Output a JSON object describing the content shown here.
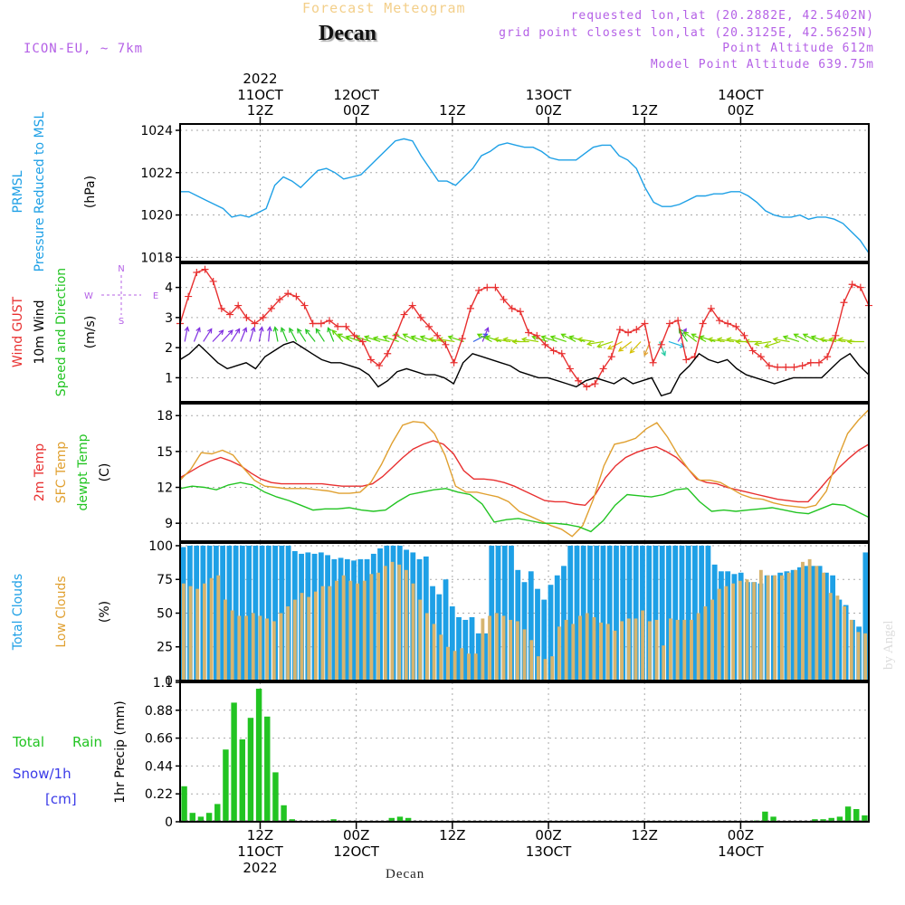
{
  "header": {
    "subtitle": "Forecast Meteogram",
    "title": "Decan",
    "model": "ICON-EU, ~ 7km",
    "requested": "requested lon,lat (20.2882E, 42.5402N)",
    "grid": "grid point closest lon,lat (20.3125E, 42.5625N)",
    "point_alt": "Point Altitude 612m",
    "model_alt": "Model Point Altitude 639.75m"
  },
  "footer": {
    "station": "Decan",
    "credit": "by Angel"
  },
  "time_axis": {
    "top": [
      {
        "line1": "2022",
        "line2": "11OCT",
        "line3": "12Z",
        "hour": 12
      },
      {
        "line1": "",
        "line2": "12OCT",
        "line3": "00Z",
        "hour": 24
      },
      {
        "line1": "",
        "line2": "",
        "line3": "12Z",
        "hour": 36
      },
      {
        "line1": "",
        "line2": "13OCT",
        "line3": "00Z",
        "hour": 48
      },
      {
        "line1": "",
        "line2": "",
        "line3": "12Z",
        "hour": 60
      },
      {
        "line1": "",
        "line2": "14OCT",
        "line3": "00Z",
        "hour": 72
      }
    ],
    "bottom": [
      {
        "line1": "12Z",
        "line2": "11OCT",
        "line3": "2022",
        "hour": 12
      },
      {
        "line1": "00Z",
        "line2": "12OCT",
        "line3": "",
        "hour": 24
      },
      {
        "line1": "12Z",
        "line2": "",
        "line3": "",
        "hour": 36
      },
      {
        "line1": "00Z",
        "line2": "13OCT",
        "line3": "",
        "hour": 48
      },
      {
        "line1": "12Z",
        "line2": "",
        "line3": "",
        "hour": 60
      },
      {
        "line1": "00Z",
        "line2": "14OCT",
        "line3": "",
        "hour": 72
      }
    ]
  },
  "panels": {
    "pressure": {
      "labels": [
        {
          "text": "PRMSL",
          "color": "#1ea0e6"
        },
        {
          "text": "Pressure Reduced to MSL",
          "color": "#1ea0e6"
        },
        {
          "text": "(hPa)",
          "color": "#000000"
        }
      ]
    },
    "wind": {
      "labels": [
        {
          "text": "Wind GUST",
          "color": "#e83030"
        },
        {
          "text": "10m Wind",
          "color": "#000000"
        },
        {
          "text": "Speed and Direction",
          "color": "#22c422"
        },
        {
          "text": "(m/s)",
          "color": "#000000"
        }
      ],
      "compass": {
        "n": "N",
        "s": "S",
        "w": "W",
        "e": "E"
      }
    },
    "temp": {
      "labels": [
        {
          "text": "2m Temp",
          "color": "#e83030"
        },
        {
          "text": "SFC Temp",
          "color": "#e0a030"
        },
        {
          "text": "dewpt Temp",
          "color": "#22c422"
        },
        {
          "text": "(C)",
          "color": "#000000"
        }
      ]
    },
    "clouds": {
      "labels": [
        {
          "text": "Total Clouds",
          "color": "#1ea0e6"
        },
        {
          "text": "Low Clouds",
          "color": "#e0a030"
        },
        {
          "text": "(%)",
          "color": "#000000"
        }
      ]
    },
    "precip": {
      "side": [
        {
          "text": "Total",
          "color": "#22c422"
        },
        {
          "text": "Rain",
          "color": "#22c422"
        },
        {
          "text": "Snow/1h",
          "color": "#3a3ae8"
        },
        {
          "text": "[cm]",
          "color": "#3a3ae8"
        }
      ],
      "axis_label": "1hr Precip (mm)"
    }
  },
  "chart_data": [
    {
      "type": "line",
      "xlabel": "",
      "ylabel": "PRMSL Pressure Reduced to MSL (hPa)",
      "x_hours_start": 2,
      "x_hours_end": 88,
      "ylim": [
        1017.8,
        1024.3
      ],
      "yticks": [
        1018,
        1020,
        1022,
        1024
      ],
      "series": [
        {
          "name": "PRMSL",
          "color": "#1ea0e6",
          "values": [
            1021.1,
            1021.1,
            1020.9,
            1020.7,
            1020.5,
            1020.3,
            1019.9,
            1020.0,
            1019.9,
            1020.1,
            1020.3,
            1021.4,
            1021.8,
            1021.6,
            1021.3,
            1021.7,
            1022.1,
            1022.2,
            1022.0,
            1021.7,
            1021.8,
            1021.9,
            1022.3,
            1022.7,
            1023.1,
            1023.5,
            1023.6,
            1023.5,
            1022.8,
            1022.2,
            1021.6,
            1021.6,
            1021.4,
            1021.8,
            1022.2,
            1022.8,
            1023.0,
            1023.3,
            1023.4,
            1023.3,
            1023.2,
            1023.2,
            1023.0,
            1022.7,
            1022.6,
            1022.6,
            1022.6,
            1022.9,
            1023.2,
            1023.3,
            1023.3,
            1022.8,
            1022.6,
            1022.2,
            1021.3,
            1020.6,
            1020.4,
            1020.4,
            1020.5,
            1020.7,
            1020.9,
            1020.9,
            1021.0,
            1021.0,
            1021.1,
            1021.1,
            1020.9,
            1020.6,
            1020.2,
            1020.0,
            1019.9,
            1019.9,
            1020.0,
            1019.8,
            1019.9,
            1019.9,
            1019.8,
            1019.6,
            1019.2,
            1018.8,
            1018.2
          ]
        }
      ]
    },
    {
      "type": "line",
      "xlabel": "",
      "ylabel": "Wind GUST / 10m Wind Speed and Direction (m/s)",
      "x_hours_start": 2,
      "x_hours_end": 88,
      "ylim": [
        0.2,
        4.8
      ],
      "yticks": [
        1,
        2,
        3,
        4
      ],
      "series": [
        {
          "name": "Wind GUST",
          "color": "#e83030",
          "values": [
            2.8,
            3.7,
            4.5,
            4.6,
            4.2,
            3.3,
            3.1,
            3.4,
            3.0,
            2.8,
            3.0,
            3.3,
            3.6,
            3.8,
            3.7,
            3.4,
            2.8,
            2.8,
            2.9,
            2.7,
            2.7,
            2.4,
            2.2,
            1.6,
            1.4,
            1.8,
            2.4,
            3.1,
            3.4,
            3.0,
            2.7,
            2.4,
            2.1,
            1.5,
            2.3,
            3.3,
            3.9,
            4.0,
            4.0,
            3.6,
            3.3,
            3.2,
            2.5,
            2.4,
            2.1,
            1.9,
            1.8,
            1.3,
            0.9,
            0.7,
            0.8,
            1.3,
            1.7,
            2.6,
            2.5,
            2.6,
            2.8,
            1.5,
            2.1,
            2.8,
            2.9,
            1.6,
            1.7,
            2.8,
            3.3,
            2.9,
            2.8,
            2.7,
            2.4,
            1.9,
            1.7,
            1.4,
            1.35,
            1.35,
            1.35,
            1.4,
            1.5,
            1.5,
            1.7,
            2.4,
            3.5,
            4.1,
            4.0,
            3.4
          ]
        },
        {
          "name": "10m Wind",
          "color": "#000000",
          "values": [
            1.6,
            1.8,
            2.1,
            1.8,
            1.5,
            1.3,
            1.4,
            1.5,
            1.3,
            1.7,
            1.9,
            2.1,
            2.2,
            2.0,
            1.8,
            1.6,
            1.5,
            1.5,
            1.4,
            1.3,
            1.1,
            0.7,
            0.9,
            1.2,
            1.3,
            1.2,
            1.1,
            1.1,
            1.0,
            0.8,
            1.5,
            1.8,
            1.7,
            1.6,
            1.5,
            1.4,
            1.2,
            1.1,
            1.0,
            1.0,
            0.9,
            0.8,
            0.7,
            0.9,
            1.0,
            0.9,
            0.8,
            1.0,
            0.8,
            0.9,
            1.0,
            0.4,
            0.5,
            1.1,
            1.4,
            1.8,
            1.6,
            1.5,
            1.6,
            1.3,
            1.1,
            1.0,
            0.9,
            0.8,
            0.9,
            1.0,
            1.0,
            1.0,
            1.0,
            1.3,
            1.6,
            1.8,
            1.4,
            1.1
          ]
        }
      ],
      "wind_direction_from_deg": [
        350,
        340,
        330,
        320,
        320,
        330,
        340,
        345,
        350,
        355,
        10,
        20,
        25,
        30,
        35,
        30,
        20,
        40,
        60,
        70,
        70,
        70,
        75,
        70,
        60,
        60,
        70,
        70,
        80,
        80,
        70,
        300,
        340,
        60,
        70,
        80,
        80,
        90,
        80,
        70,
        70,
        70,
        60,
        70,
        80,
        100,
        110,
        120,
        130,
        140,
        160,
        200,
        250,
        330,
        30,
        50,
        60,
        70,
        80,
        80,
        80,
        90,
        90,
        100,
        110,
        80,
        70,
        60,
        60,
        70,
        80,
        80,
        80,
        90
      ]
    },
    {
      "type": "line",
      "xlabel": "",
      "ylabel": "2m Temp / SFC Temp / dewpt Temp (C)",
      "x_hours_start": 2,
      "x_hours_end": 88,
      "ylim": [
        7.5,
        19.0
      ],
      "yticks": [
        9,
        12,
        15,
        18
      ],
      "series": [
        {
          "name": "2m Temp",
          "color": "#e83030",
          "values": [
            12.8,
            13.3,
            13.8,
            14.2,
            14.5,
            14.2,
            13.8,
            13.2,
            12.7,
            12.4,
            12.3,
            12.3,
            12.3,
            12.3,
            12.3,
            12.2,
            12.1,
            12.1,
            12.1,
            12.3,
            12.9,
            13.7,
            14.5,
            15.2,
            15.6,
            15.9,
            15.6,
            14.8,
            13.4,
            12.7,
            12.7,
            12.6,
            12.4,
            12.1,
            11.7,
            11.3,
            10.9,
            10.8,
            10.8,
            10.6,
            10.5,
            11.4,
            12.8,
            13.8,
            14.5,
            14.9,
            15.2,
            15.4,
            15.0,
            14.5,
            13.7,
            12.7,
            12.4,
            12.3,
            12.0,
            11.8,
            11.6,
            11.4,
            11.2,
            11.0,
            10.9,
            10.8,
            10.8,
            11.7,
            12.7,
            13.6,
            14.4,
            15.1,
            15.6
          ]
        },
        {
          "name": "SFC Temp",
          "color": "#e0a030",
          "values": [
            12.6,
            13.5,
            14.9,
            14.8,
            15.1,
            14.7,
            13.6,
            12.6,
            12.1,
            12.0,
            11.9,
            11.9,
            11.9,
            11.8,
            11.7,
            11.5,
            11.5,
            11.6,
            12.4,
            13.9,
            15.7,
            17.2,
            17.5,
            17.4,
            16.5,
            14.7,
            12.1,
            11.6,
            11.6,
            11.4,
            11.2,
            10.8,
            10.0,
            9.6,
            9.2,
            8.8,
            8.5,
            7.9,
            8.8,
            11.0,
            13.8,
            15.6,
            15.8,
            16.1,
            16.9,
            17.4,
            16.2,
            14.7,
            13.5,
            12.6,
            12.6,
            12.4,
            11.9,
            11.4,
            11.1,
            11.0,
            10.7,
            10.5,
            10.4,
            10.3,
            10.5,
            11.7,
            14.3,
            16.5,
            17.6,
            18.5
          ]
        },
        {
          "name": "dewpt Temp",
          "color": "#22c422",
          "values": [
            11.9,
            12.1,
            12.0,
            11.8,
            12.2,
            12.4,
            12.2,
            11.6,
            11.2,
            10.9,
            10.5,
            10.1,
            10.2,
            10.2,
            10.3,
            10.1,
            10.0,
            10.1,
            10.8,
            11.4,
            11.6,
            11.8,
            11.9,
            11.6,
            11.4,
            10.6,
            9.1,
            9.3,
            9.4,
            9.2,
            9.0,
            9.0,
            8.9,
            8.7,
            8.3,
            9.2,
            10.5,
            11.4,
            11.3,
            11.2,
            11.4,
            11.8,
            11.9,
            10.8,
            10.0,
            10.1,
            10.0,
            10.1,
            10.2,
            10.3,
            10.1,
            9.9,
            9.8,
            10.2,
            10.6,
            10.5,
            10.0,
            9.5
          ]
        }
      ]
    },
    {
      "type": "bar",
      "xlabel": "",
      "ylabel": "Total Clouds / Low Clouds (%)",
      "x_hours_start": 2,
      "x_hours_end": 88,
      "ylim": [
        0,
        102
      ],
      "yticks": [
        0,
        25,
        50,
        75,
        100
      ],
      "series": [
        {
          "name": "Total Clouds",
          "color": "#1ea0e6",
          "values": [
            99,
            100,
            100,
            100,
            100,
            100,
            100,
            100,
            100,
            100,
            100,
            100,
            100,
            100,
            100,
            100,
            100,
            96,
            94,
            95,
            94,
            95,
            93,
            90,
            91,
            90,
            89,
            90,
            90,
            94,
            98,
            100,
            100,
            100,
            97,
            95,
            90,
            92,
            70,
            64,
            75,
            55,
            47,
            45,
            47,
            35,
            35,
            100,
            100,
            100,
            100,
            82,
            73,
            81,
            68,
            60,
            71,
            78,
            85,
            100,
            100,
            100,
            100,
            100,
            100,
            100,
            100,
            100,
            100,
            100,
            100,
            100,
            100,
            100,
            100,
            100,
            100,
            100,
            100,
            100,
            100,
            86,
            81,
            81,
            79,
            80,
            73,
            73,
            72,
            78,
            78,
            80,
            81,
            82,
            84,
            85,
            85,
            85,
            80,
            78,
            60,
            56,
            45,
            40,
            95
          ]
        },
        {
          "name": "Low Clouds",
          "color": "#d7b46e",
          "values": [
            72,
            70,
            68,
            72,
            76,
            78,
            60,
            52,
            48,
            48,
            50,
            48,
            46,
            44,
            50,
            55,
            60,
            65,
            62,
            66,
            70,
            70,
            74,
            78,
            74,
            72,
            74,
            79,
            80,
            85,
            88,
            86,
            82,
            72,
            60,
            50,
            42,
            34,
            25,
            22,
            24,
            20,
            20,
            46,
            48,
            50,
            48,
            45,
            44,
            38,
            30,
            18,
            16,
            18,
            40,
            45,
            42,
            48,
            50,
            47,
            43,
            42,
            37,
            44,
            46,
            46,
            52,
            44,
            45,
            26,
            46,
            45,
            45,
            45,
            50,
            55,
            60,
            68,
            70,
            72,
            74,
            75,
            73,
            82,
            78,
            78,
            78,
            80,
            82,
            88,
            90,
            85,
            80,
            65,
            63,
            55,
            45,
            36,
            35
          ]
        }
      ]
    },
    {
      "type": "bar",
      "xlabel": "",
      "ylabel": "1hr Precip (mm)",
      "x_hours_start": 2,
      "x_hours_end": 88,
      "ylim": [
        0,
        1.1
      ],
      "yticks": [
        0,
        0.22,
        0.44,
        0.66,
        0.88,
        1.1
      ],
      "series": [
        {
          "name": "Total Rain",
          "color": "#22c422",
          "values": [
            0.28,
            0.07,
            0.04,
            0.07,
            0.14,
            0.57,
            0.94,
            0.65,
            0.82,
            1.05,
            0.83,
            0.39,
            0.13,
            0.02,
            0.0,
            0.0,
            0.0,
            0.0,
            0.02,
            0.0,
            0.0,
            0.0,
            0.0,
            0.0,
            0.0,
            0.03,
            0.04,
            0.03,
            0.0,
            0.0,
            0.0,
            0.0,
            0.0,
            0.0,
            0.0,
            0.0,
            0.0,
            0.0,
            0.0,
            0.0,
            0.0,
            0.0,
            0.0,
            0.0,
            0.0,
            0.0,
            0.0,
            0.0,
            0.0,
            0.0,
            0.0,
            0.0,
            0.0,
            0.0,
            0.0,
            0.0,
            0.0,
            0.0,
            0.0,
            0.0,
            0.0,
            0.0,
            0.0,
            0.0,
            0.0,
            0.0,
            0.0,
            0.0,
            0.0,
            0.01,
            0.08,
            0.04,
            0.0,
            0.0,
            0.0,
            0.0,
            0.02,
            0.02,
            0.03,
            0.04,
            0.12,
            0.1,
            0.05
          ]
        }
      ]
    }
  ]
}
